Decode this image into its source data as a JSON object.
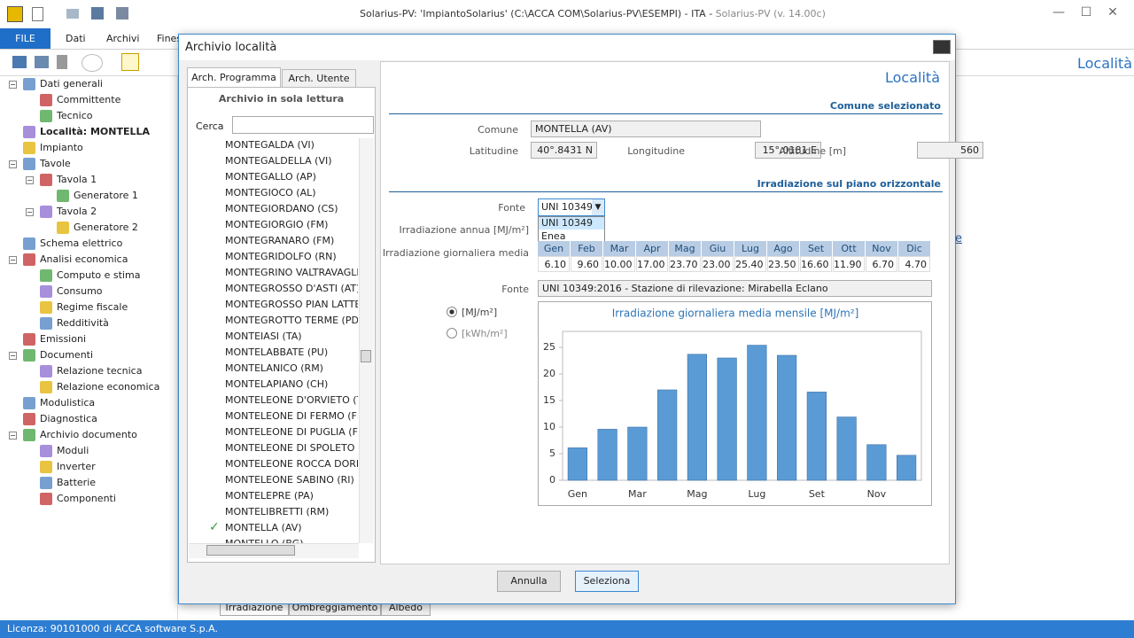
{
  "window": {
    "title": "Solarius-PV: 'ImpiantoSolarius' (C:\\ACCA COM\\Solarius-PV\\ESEMPI) - ITA - ",
    "app_version": "Solarius-PV (v. 14.00c)"
  },
  "menu": [
    "FILE",
    "Dati",
    "Archivi",
    "Fines"
  ],
  "main_header": "Località",
  "hidden_links": [
    "e",
    "e"
  ],
  "tree": [
    {
      "label": "Dati generali",
      "children": [
        {
          "label": "Committente"
        },
        {
          "label": "Tecnico"
        }
      ]
    },
    {
      "label": "Località: MONTELLA",
      "selected": true
    },
    {
      "label": "Impianto"
    },
    {
      "label": "Tavole",
      "children": [
        {
          "label": "Tavola 1",
          "children": [
            {
              "label": "Generatore 1"
            }
          ]
        },
        {
          "label": "Tavola 2",
          "children": [
            {
              "label": "Generatore 2"
            }
          ]
        }
      ]
    },
    {
      "label": "Schema elettrico"
    },
    {
      "label": "Analisi economica",
      "children": [
        {
          "label": "Computo e stima"
        },
        {
          "label": "Consumo"
        },
        {
          "label": "Regime fiscale"
        },
        {
          "label": "Redditività"
        }
      ]
    },
    {
      "label": "Emissioni"
    },
    {
      "label": "Documenti",
      "children": [
        {
          "label": "Relazione tecnica"
        },
        {
          "label": "Relazione economica"
        }
      ]
    },
    {
      "label": "Modulistica"
    },
    {
      "label": "Diagnostica"
    },
    {
      "label": "Archivio documento",
      "children": [
        {
          "label": "Moduli"
        },
        {
          "label": "Inverter"
        },
        {
          "label": "Batterie"
        },
        {
          "label": "Componenti"
        }
      ]
    }
  ],
  "bottom_tabs": [
    "Irradiazione",
    "Ombreggiamento",
    "Albedo"
  ],
  "status": "Licenza: 90101000 di ACCA software S.p.A.",
  "dialog": {
    "title": "Archivio località",
    "tabs": [
      "Arch. Programma",
      "Arch. Utente"
    ],
    "readonly_note": "Archivio in sola lettura",
    "search_label": "Cerca",
    "list": [
      {
        "name": "MONTEGALDA (VI)"
      },
      {
        "name": "MONTEGALDELLA (VI)"
      },
      {
        "name": "MONTEGALLO (AP)"
      },
      {
        "name": "MONTEGIOCO (AL)"
      },
      {
        "name": "MONTEGIORDANO (CS)"
      },
      {
        "name": "MONTEGIORGIO (FM)"
      },
      {
        "name": "MONTEGRANARO (FM)"
      },
      {
        "name": "MONTEGRIDOLFO (RN)"
      },
      {
        "name": "MONTEGRINO VALTRAVAGLIA"
      },
      {
        "name": "MONTEGROSSO D'ASTI (AT)"
      },
      {
        "name": "MONTEGROSSO PIAN LATTE (I"
      },
      {
        "name": "MONTEGROTTO TERME (PD)"
      },
      {
        "name": "MONTEIASI (TA)"
      },
      {
        "name": "MONTELABBATE (PU)"
      },
      {
        "name": "MONTELANICO (RM)"
      },
      {
        "name": "MONTELAPIANO (CH)"
      },
      {
        "name": "MONTELEONE D'ORVIETO (TR)"
      },
      {
        "name": "MONTELEONE DI FERMO (FM)"
      },
      {
        "name": "MONTELEONE DI PUGLIA (FG)"
      },
      {
        "name": "MONTELEONE DI SPOLETO (PG"
      },
      {
        "name": "MONTELEONE ROCCA DORIA ("
      },
      {
        "name": "MONTELEONE SABINO (RI)"
      },
      {
        "name": "MONTELEPRE (PA)"
      },
      {
        "name": "MONTELIBRETTI (RM)"
      },
      {
        "name": "MONTELLA (AV)",
        "checked": true
      },
      {
        "name": "MONTELLO (BG)"
      }
    ],
    "panel": {
      "header": "Località",
      "section1": "Comune selezionato",
      "fields": [
        {
          "label": "Comune",
          "value": "MONTELLA (AV)"
        },
        {
          "label": "Latitudine",
          "value": "40°.8431 N"
        },
        {
          "label": "Longitudine",
          "value": "15°.0181 E"
        },
        {
          "label": "Altitudine [m]",
          "value": "560"
        }
      ],
      "section2": "Irradiazione sul piano orizzontale",
      "fonte_label": "Fonte",
      "fonte_value": "UNI 10349",
      "fonte_options": [
        "UNI 10349",
        "Enea"
      ],
      "annual_label": "Irradiazione annua [MJ/m²]",
      "daily_label": "Irradiazione giornaliera media",
      "source_label": "Fonte",
      "source_value": "UNI 10349:2016 - Stazione di rilevazione: Mirabella Eclano",
      "units": [
        "[MJ/m²]",
        "[kWh/m²]"
      ]
    },
    "buttons": [
      "Annulla",
      "Seleziona"
    ]
  },
  "chart_data": {
    "type": "bar",
    "title": "Irradiazione giornaliera media mensile [MJ/m²]",
    "categories": [
      "Gen",
      "Feb",
      "Mar",
      "Apr",
      "Mag",
      "Giu",
      "Lug",
      "Ago",
      "Set",
      "Ott",
      "Nov",
      "Dic"
    ],
    "values": [
      6.1,
      9.6,
      10,
      17,
      23.7,
      23,
      25.4,
      23.5,
      16.6,
      11.9,
      6.7,
      4.7
    ],
    "value_labels": [
      "6.10",
      "9.60",
      "10.00",
      "17.00",
      "23.70",
      "23.00",
      "25.40",
      "23.50",
      "16.60",
      "11.90",
      "6.70",
      "4.70"
    ],
    "color": "#5b9bd5",
    "ylim": [
      0,
      28
    ],
    "yticks": [
      0,
      5,
      10,
      15,
      20,
      25
    ],
    "grid": false
  }
}
